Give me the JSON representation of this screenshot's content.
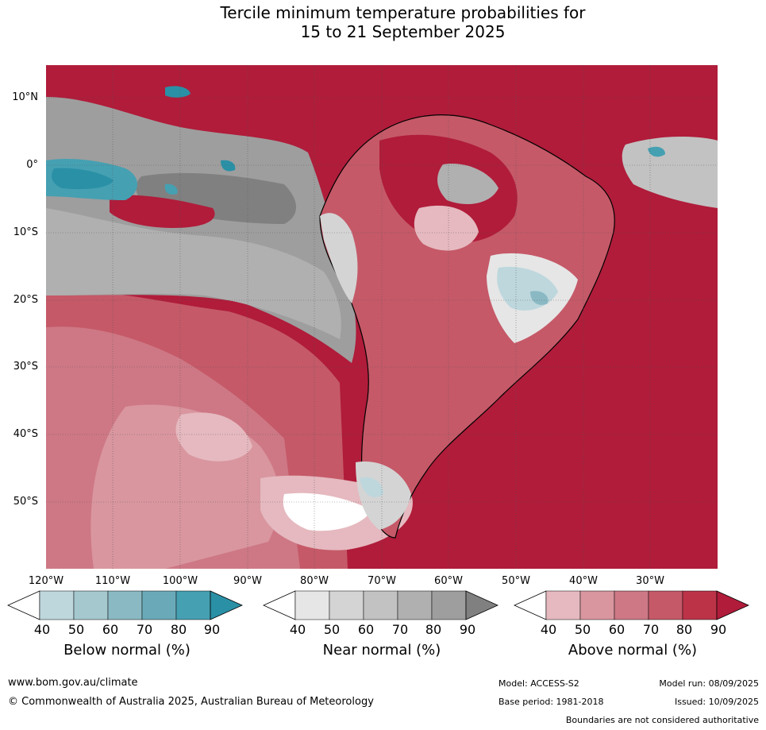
{
  "title": {
    "line1": "Tercile minimum temperature probabilities for",
    "line2": "15 to 21 September 2025"
  },
  "axes": {
    "lat_labels": [
      "10°N",
      "0°",
      "10°S",
      "20°S",
      "30°S",
      "40°S",
      "50°S"
    ],
    "lon_labels": [
      "120°W",
      "110°W",
      "100°W",
      "90°W",
      "80°W",
      "70°W",
      "60°W",
      "50°W",
      "40°W",
      "30°W"
    ]
  },
  "legend": {
    "below": {
      "title": "Below normal (%)",
      "ticks": [
        "40",
        "50",
        "60",
        "70",
        "80",
        "90"
      ],
      "colors": [
        "#ffffff",
        "#bdd7dd",
        "#a5c8cf",
        "#8ab9c3",
        "#6aaab8",
        "#45a0b2",
        "#2a90a6"
      ]
    },
    "near": {
      "title": "Near normal (%)",
      "ticks": [
        "40",
        "50",
        "60",
        "70",
        "80",
        "90"
      ],
      "colors": [
        "#ffffff",
        "#e6e6e6",
        "#d4d4d4",
        "#c2c2c2",
        "#b0b0b0",
        "#9e9e9e",
        "#808080"
      ]
    },
    "above": {
      "title": "Above normal (%)",
      "ticks": [
        "40",
        "50",
        "60",
        "70",
        "80",
        "90"
      ],
      "colors": [
        "#ffffff",
        "#e5b9bf",
        "#d9969f",
        "#ce7885",
        "#c55968",
        "#bc3348",
        "#b01c3a"
      ]
    }
  },
  "footer": {
    "website": "www.bom.gov.au/climate",
    "copyright": "© Commonwealth of Australia 2025, Australian Bureau of Meteorology",
    "model": "Model: ACCESS-S2",
    "model_run": "Model run: 08/09/2025",
    "base_period": "Base period: 1981-2018",
    "issued": "Issued: 10/09/2025",
    "disclaimer": "Boundaries are not considered authoritative"
  }
}
